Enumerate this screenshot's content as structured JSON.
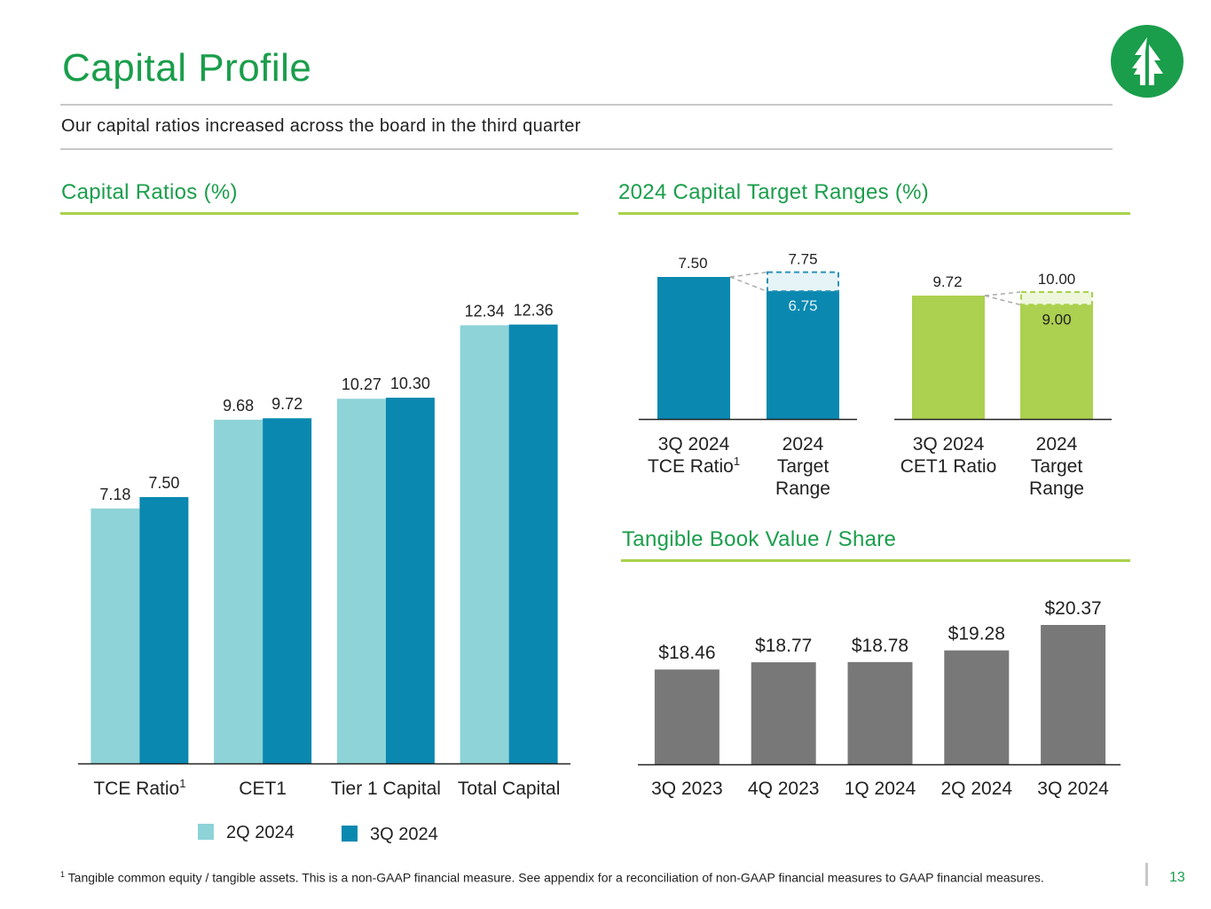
{
  "header": {
    "title": "Capital Profile",
    "subtitle": "Our capital ratios increased across the board in the third quarter",
    "logo_icon": "tree-logo-icon"
  },
  "colors": {
    "brand_green": "#1a9e4b",
    "accent_lime": "#a8d24a",
    "light_teal": "#8dd3d7",
    "dark_teal": "#0a88b0",
    "gray_bar": "#787878",
    "lime_bar": "#acd04f"
  },
  "sections": {
    "capital_ratios": "Capital Ratios (%)",
    "target_ranges": "2024 Capital Target Ranges (%)",
    "tbv": "Tangible Book Value / Share"
  },
  "legend": {
    "series1": "2Q 2024",
    "series2": "3Q 2024"
  },
  "chart_data": [
    {
      "id": "capital-ratios",
      "type": "bar",
      "title": "Capital Ratios (%)",
      "categories": [
        "TCE Ratio",
        "CET1",
        "Tier 1 Capital",
        "Total Capital"
      ],
      "category_superscripts": [
        "1",
        "",
        "",
        ""
      ],
      "series": [
        {
          "name": "2Q 2024",
          "values": [
            7.18,
            9.68,
            10.27,
            12.34
          ],
          "labels": [
            "7.18",
            "9.68",
            "10.27",
            "12.34"
          ]
        },
        {
          "name": "3Q 2024",
          "values": [
            7.5,
            9.72,
            10.3,
            12.36
          ],
          "labels": [
            "7.50",
            "9.72",
            "10.30",
            "12.36"
          ]
        }
      ],
      "ylim": [
        0,
        13.4
      ]
    },
    {
      "id": "tce-target",
      "type": "bar",
      "title": "2024 Capital Target Ranges (%)",
      "actual": {
        "value": 7.5,
        "label": "7.50",
        "category_lines": [
          "3Q 2024",
          "TCE Ratio"
        ],
        "superscript": "1"
      },
      "range": {
        "low": 6.75,
        "high": 7.75,
        "low_label": "6.75",
        "high_label": "7.75",
        "category_lines": [
          "2024",
          "Target",
          "Range"
        ]
      },
      "ylim": [
        0,
        9.2
      ]
    },
    {
      "id": "cet1-target",
      "type": "bar",
      "title": "2024 Capital Target Ranges (%)",
      "actual": {
        "value": 9.72,
        "label": "9.72",
        "category_lines": [
          "3Q 2024",
          "CET1 Ratio"
        ]
      },
      "range": {
        "low": 9.0,
        "high": 10.0,
        "low_label": "9.00",
        "high_label": "10.00",
        "category_lines": [
          "2024",
          "Target",
          "Range"
        ]
      },
      "ylim": [
        0,
        10.9
      ]
    },
    {
      "id": "tbv",
      "type": "bar",
      "title": "Tangible Book Value / Share",
      "categories": [
        "3Q 2023",
        "4Q 2023",
        "1Q 2024",
        "2Q 2024",
        "3Q 2024"
      ],
      "values": [
        18.46,
        18.77,
        18.78,
        19.28,
        20.37
      ],
      "labels": [
        "$18.46",
        "$18.77",
        "$18.78",
        "$19.28",
        "$20.37"
      ],
      "ylim": [
        14.4,
        20.5
      ]
    }
  ],
  "footnote": {
    "marker": "1",
    "text": "Tangible common equity / tangible assets. This is a non-GAAP financial measure. See appendix for a reconciliation of non-GAAP financial measures to GAAP financial measures."
  },
  "page_number": "13"
}
